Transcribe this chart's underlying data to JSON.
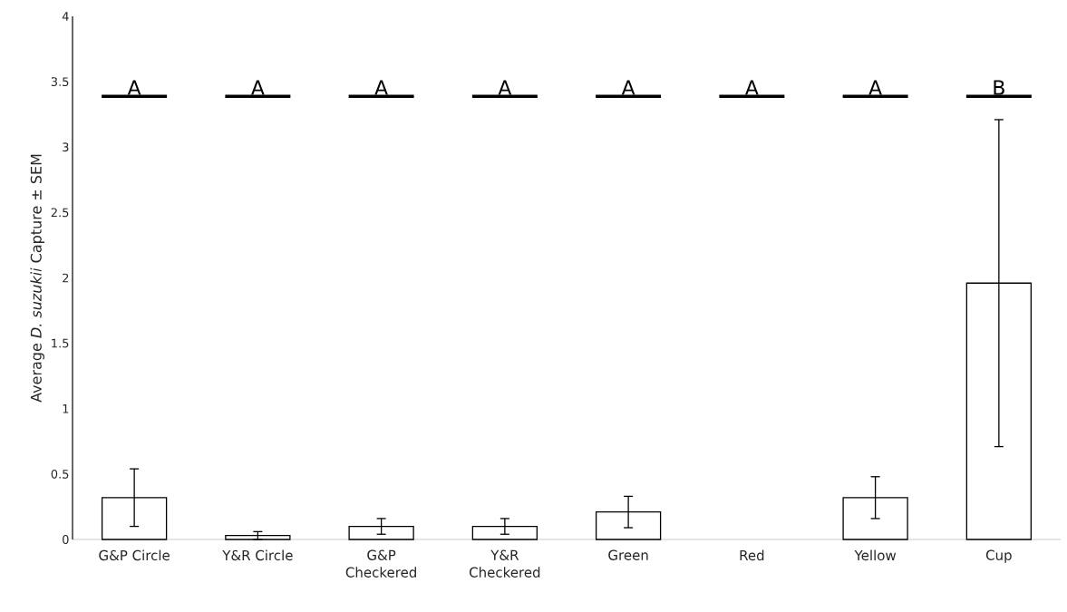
{
  "chart_data": {
    "type": "bar",
    "ylabel": "Average *D. suzukii* Capture ± SEM",
    "categories": [
      "G&P Circle",
      "Y&R Circle",
      "G&P\nCheckered",
      "Y&R\nCheckered",
      "Green",
      "Red",
      "Yellow",
      "Cup"
    ],
    "values": [
      0.32,
      0.03,
      0.1,
      0.1,
      0.21,
      0,
      0.32,
      1.96
    ],
    "errors": [
      0.22,
      0.03,
      0.06,
      0.06,
      0.12,
      null,
      0.16,
      1.25
    ],
    "color": "#ffffff",
    "ylim": [
      0,
      4
    ],
    "yticks": [
      0,
      0.5,
      1,
      1.5,
      2,
      2.5,
      3,
      3.5,
      4
    ],
    "annotations": [
      "A",
      "A",
      "A",
      "A",
      "A",
      "A",
      "A",
      "B"
    ]
  }
}
